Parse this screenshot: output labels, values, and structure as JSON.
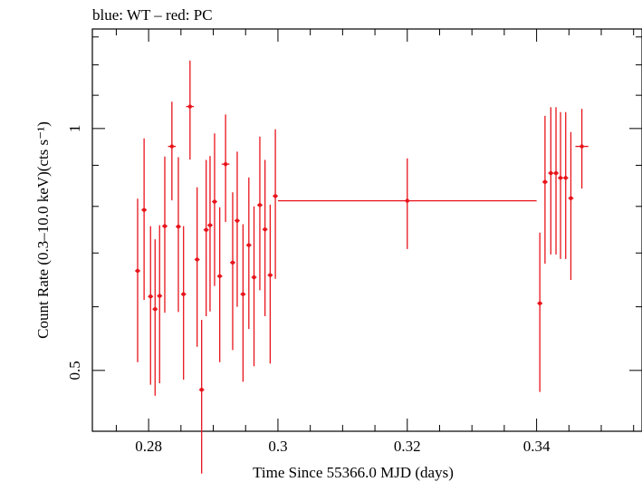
{
  "chart_data": {
    "type": "scatter",
    "title": "blue: WT – red: PC",
    "xlabel": "Time Since 55366.0 MJD (days)",
    "ylabel": "Count Rate (0.3–10.0 keV)(cts s⁻¹)",
    "xlim": [
      0.2713,
      0.3563
    ],
    "ylim": [
      0.42,
      1.33
    ],
    "y_scale": "log",
    "x_ticks": [
      "0.28",
      "0.3",
      "0.32",
      "0.34"
    ],
    "y_ticks": [
      "0.5",
      "1"
    ],
    "series": [
      {
        "name": "PC",
        "color": "#e8141b",
        "points": [
          {
            "x": 0.2783,
            "xerr": 0.0004,
            "y": 0.665,
            "ylo": 0.512,
            "yhi": 0.818
          },
          {
            "x": 0.2793,
            "xerr": 0.0004,
            "y": 0.792,
            "ylo": 0.612,
            "yhi": 0.972
          },
          {
            "x": 0.2803,
            "xerr": 0.0004,
            "y": 0.618,
            "ylo": 0.48,
            "yhi": 0.756
          },
          {
            "x": 0.281,
            "xerr": 0.0004,
            "y": 0.596,
            "ylo": 0.465,
            "yhi": 0.728
          },
          {
            "x": 0.2817,
            "xerr": 0.0004,
            "y": 0.619,
            "ylo": 0.482,
            "yhi": 0.758
          },
          {
            "x": 0.2825,
            "xerr": 0.0004,
            "y": 0.756,
            "ylo": 0.59,
            "yhi": 0.923
          },
          {
            "x": 0.2836,
            "xerr": 0.0006,
            "y": 0.95,
            "ylo": 0.814,
            "yhi": 1.08
          },
          {
            "x": 0.2846,
            "xerr": 0.0004,
            "y": 0.755,
            "ylo": 0.591,
            "yhi": 0.921
          },
          {
            "x": 0.2854,
            "xerr": 0.0004,
            "y": 0.622,
            "ylo": 0.487,
            "yhi": 0.756
          },
          {
            "x": 0.2864,
            "xerr": 0.0006,
            "y": 1.065,
            "ylo": 0.915,
            "yhi": 1.215
          },
          {
            "x": 0.2875,
            "xerr": 0.0004,
            "y": 0.687,
            "ylo": 0.535,
            "yhi": 0.845
          },
          {
            "x": 0.2882,
            "xerr": 0.0004,
            "y": 0.473,
            "ylo": 0.372,
            "yhi": 0.578
          },
          {
            "x": 0.2889,
            "xerr": 0.0004,
            "y": 0.748,
            "ylo": 0.584,
            "yhi": 0.914
          },
          {
            "x": 0.2895,
            "xerr": 0.0004,
            "y": 0.758,
            "ylo": 0.592,
            "yhi": 0.924
          },
          {
            "x": 0.2902,
            "xerr": 0.0004,
            "y": 0.811,
            "ylo": 0.637,
            "yhi": 0.986
          },
          {
            "x": 0.291,
            "xerr": 0.0004,
            "y": 0.655,
            "ylo": 0.512,
            "yhi": 0.798
          },
          {
            "x": 0.2919,
            "xerr": 0.0006,
            "y": 0.903,
            "ylo": 0.765,
            "yhi": 1.041
          },
          {
            "x": 0.293,
            "xerr": 0.0004,
            "y": 0.681,
            "ylo": 0.53,
            "yhi": 0.833
          },
          {
            "x": 0.2937,
            "xerr": 0.0004,
            "y": 0.768,
            "ylo": 0.6,
            "yhi": 0.936
          },
          {
            "x": 0.2946,
            "xerr": 0.0004,
            "y": 0.622,
            "ylo": 0.484,
            "yhi": 0.76
          },
          {
            "x": 0.2955,
            "xerr": 0.0004,
            "y": 0.716,
            "ylo": 0.563,
            "yhi": 0.869
          },
          {
            "x": 0.2963,
            "xerr": 0.0004,
            "y": 0.653,
            "ylo": 0.506,
            "yhi": 0.8
          },
          {
            "x": 0.2972,
            "xerr": 0.0004,
            "y": 0.803,
            "ylo": 0.629,
            "yhi": 0.977
          },
          {
            "x": 0.298,
            "xerr": 0.0004,
            "y": 0.749,
            "ylo": 0.584,
            "yhi": 0.914
          },
          {
            "x": 0.2988,
            "xerr": 0.0004,
            "y": 0.657,
            "ylo": 0.51,
            "yhi": 0.804
          },
          {
            "x": 0.2996,
            "xerr": 0.0004,
            "y": 0.824,
            "ylo": 0.65,
            "yhi": 0.998
          },
          {
            "x": 0.32,
            "xerr": 0.02,
            "y": 0.813,
            "ylo": 0.708,
            "yhi": 0.918
          },
          {
            "x": 0.3405,
            "xerr": 0.0004,
            "y": 0.606,
            "ylo": 0.47,
            "yhi": 0.742
          },
          {
            "x": 0.3413,
            "xerr": 0.0004,
            "y": 0.858,
            "ylo": 0.679,
            "yhi": 1.037
          },
          {
            "x": 0.3422,
            "xerr": 0.0004,
            "y": 0.88,
            "ylo": 0.697,
            "yhi": 1.063
          },
          {
            "x": 0.343,
            "xerr": 0.0004,
            "y": 0.88,
            "ylo": 0.697,
            "yhi": 1.063
          },
          {
            "x": 0.3437,
            "xerr": 0.0004,
            "y": 0.868,
            "ylo": 0.688,
            "yhi": 1.048
          },
          {
            "x": 0.3445,
            "xerr": 0.0004,
            "y": 0.868,
            "ylo": 0.688,
            "yhi": 1.048
          },
          {
            "x": 0.3453,
            "xerr": 0.0004,
            "y": 0.819,
            "ylo": 0.648,
            "yhi": 0.99
          },
          {
            "x": 0.347,
            "xerr": 0.001,
            "y": 0.95,
            "ylo": 0.842,
            "yhi": 1.058
          }
        ]
      }
    ]
  }
}
